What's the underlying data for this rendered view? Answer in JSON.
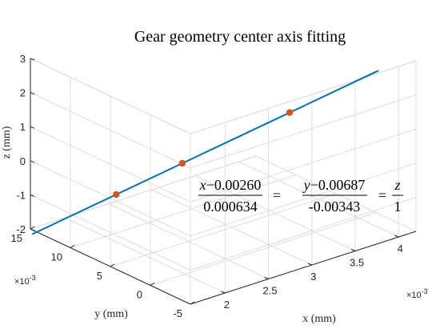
{
  "chart_data": {
    "type": "line",
    "projection": "3d",
    "title": "Gear geometry center axis fitting",
    "xlabel": "x (mm)",
    "ylabel": "y (mm)",
    "zlabel": "z (mm)",
    "x_ticks": [
      "2",
      "2.5",
      "3",
      "3.5",
      "4"
    ],
    "x_tick_values": [
      0.002,
      0.0025,
      0.003,
      0.0035,
      0.004
    ],
    "x_exponent": "×10",
    "x_exponent_power": "-3",
    "y_ticks": [
      "-5",
      "0",
      "5",
      "10",
      "15"
    ],
    "y_tick_values": [
      -0.005,
      0,
      0.005,
      0.01,
      0.015
    ],
    "y_exponent": "×10",
    "y_exponent_power": "-3",
    "z_ticks": [
      "-2",
      "-1",
      "0",
      "1",
      "2",
      "3"
    ],
    "z_tick_values": [
      -2,
      -1,
      0,
      1,
      2,
      3
    ],
    "xlim": [
      0.0016,
      0.0042
    ],
    "ylim": [
      -0.005,
      0.015
    ],
    "zlim": [
      -2,
      3
    ],
    "grid": true,
    "fit_line": {
      "color": "#0072BD",
      "x0": 0.0026,
      "y0": 0.00687,
      "z0": 0,
      "dx": 0.000634,
      "dy": -0.00343,
      "dz": 1,
      "t_range": [
        -1.82,
        2.38
      ]
    },
    "points": {
      "color": "#D95319",
      "x": [
        0.002093,
        0.0026,
        0.003427
      ],
      "y": [
        0.009614,
        0.00687,
        0.002411
      ],
      "z": [
        -0.8,
        0.0,
        1.3
      ]
    },
    "equation": {
      "lhs_num_var": "x",
      "lhs_num_rest": "−0.00260",
      "lhs_den": "0.000634",
      "mid_num_var": "y",
      "mid_num_rest": "−0.00687",
      "mid_den": "-0.00343",
      "rhs_num_var": "z",
      "rhs_den": "1",
      "equals": "="
    }
  }
}
